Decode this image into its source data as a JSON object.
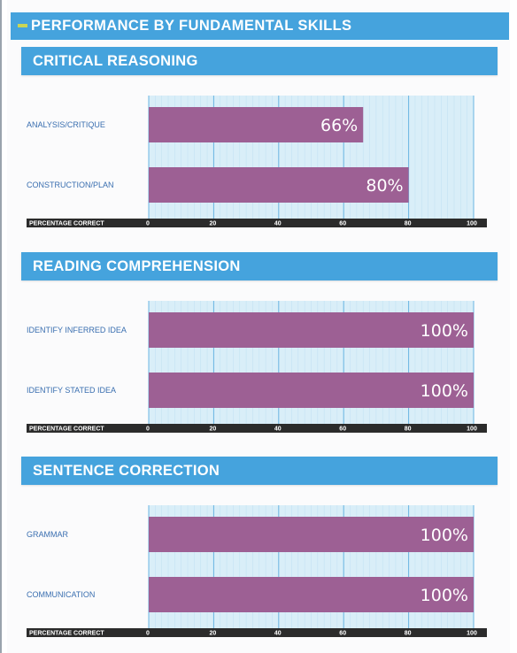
{
  "page": {
    "title": "PERFORMANCE BY FUNDAMENTAL SKILLS"
  },
  "colors": {
    "header": "#45a3dd",
    "bar": "#9d6094",
    "plot_bg": "#d9eef8",
    "grid_major": "#6ab4e2",
    "grid_minor": "#c3e2f3",
    "axis_bar": "#2b2b2b",
    "accent": "#c9d655"
  },
  "chart_data": [
    {
      "type": "bar",
      "orientation": "horizontal",
      "title": "CRITICAL REASONING",
      "categories": [
        "ANALYSIS/CRITIQUE",
        "CONSTRUCTION/PLAN"
      ],
      "values": [
        66,
        80
      ],
      "data_labels": [
        "66%",
        "80%"
      ],
      "xlabel": "PERCENTAGE CORRECT",
      "xlim": [
        0,
        100
      ],
      "xticks": [
        "0",
        "20",
        "40",
        "60",
        "80",
        "100"
      ],
      "grid": true
    },
    {
      "type": "bar",
      "orientation": "horizontal",
      "title": "READING COMPREHENSION",
      "categories": [
        "IDENTIFY INFERRED IDEA",
        "IDENTIFY STATED IDEA"
      ],
      "values": [
        100,
        100
      ],
      "data_labels": [
        "100%",
        "100%"
      ],
      "xlabel": "PERCENTAGE CORRECT",
      "xlim": [
        0,
        100
      ],
      "xticks": [
        "0",
        "20",
        "40",
        "60",
        "80",
        "100"
      ],
      "grid": true
    },
    {
      "type": "bar",
      "orientation": "horizontal",
      "title": "SENTENCE CORRECTION",
      "categories": [
        "GRAMMAR",
        "COMMUNICATION"
      ],
      "values": [
        100,
        100
      ],
      "data_labels": [
        "100%",
        "100%"
      ],
      "xlabel": "PERCENTAGE CORRECT",
      "xlim": [
        0,
        100
      ],
      "xticks": [
        "0",
        "20",
        "40",
        "60",
        "80",
        "100"
      ],
      "grid": true
    }
  ]
}
